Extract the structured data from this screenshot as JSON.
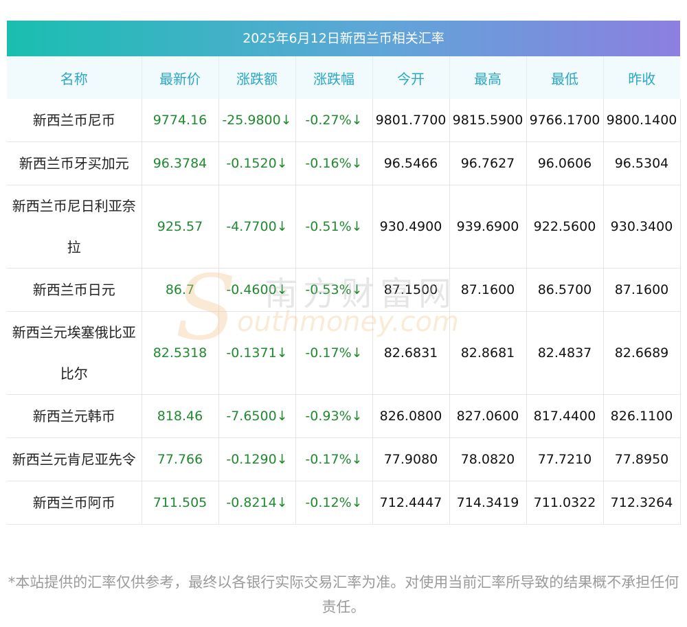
{
  "title": "2025年6月12日新西兰币相关汇率",
  "headers": [
    "名称",
    "最新价",
    "涨跌额",
    "涨跌幅",
    "今开",
    "最高",
    "最低",
    "昨收"
  ],
  "rows": [
    [
      "新西兰币尼币",
      "9774.16",
      "-25.9800↓",
      "-0.27%↓",
      "9801.7700",
      "9815.5900",
      "9766.1700",
      "9800.1400"
    ],
    [
      "新西兰币牙买加元",
      "96.3784",
      "-0.1520↓",
      "-0.16%↓",
      "96.5466",
      "96.7627",
      "96.0606",
      "96.5304"
    ],
    [
      "新西兰币尼日利亚奈拉",
      "925.57",
      "-4.7700↓",
      "-0.51%↓",
      "930.4900",
      "939.6900",
      "922.5600",
      "930.3400"
    ],
    [
      "新西兰币日元",
      "86.7",
      "-0.4600↓",
      "-0.53%↓",
      "87.1500",
      "87.1600",
      "86.5700",
      "87.1600"
    ],
    [
      "新西兰元埃塞俄比亚比尔",
      "82.5318",
      "-0.1371↓",
      "-0.17%↓",
      "82.6831",
      "82.8681",
      "82.4837",
      "82.6689"
    ],
    [
      "新西兰元韩币",
      "818.46",
      "-7.6500↓",
      "-0.93%↓",
      "826.0800",
      "827.0600",
      "817.4400",
      "826.1100"
    ],
    [
      "新西兰元肯尼亚先令",
      "77.766",
      "-0.1290↓",
      "-0.17%↓",
      "77.9080",
      "78.0820",
      "77.7210",
      "77.8950"
    ],
    [
      "新西兰币阿币",
      "711.505",
      "-0.8214↓",
      "-0.12%↓",
      "712.4447",
      "714.3419",
      "711.0322",
      "712.3264"
    ]
  ],
  "footer": "*本站提供的汇率仅供参考，最终以各银行实际交易汇率为准。对使用当前汇率所导致的结果概不承担任何责任。",
  "watermark": {
    "cn": "南方财富网",
    "en": "outhmoney.com",
    "s": "S"
  },
  "colors": {
    "change": "#1f8a2e",
    "header_text": "#2aa6c9",
    "title_bg_start": "#19bfb0",
    "title_bg_end": "#8c7fe0"
  }
}
